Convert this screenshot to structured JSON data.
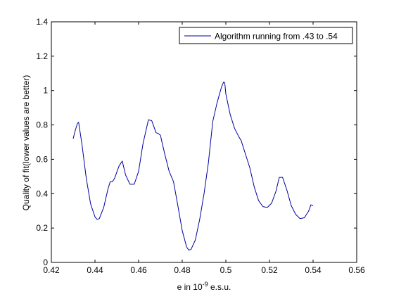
{
  "chart_data": {
    "type": "line",
    "title": "",
    "xlabel": "e in 10",
    "xlabel_sup": "-9",
    "xlabel_suffix": " e.s.u.",
    "ylabel": "Quality of fit(lower values are better)",
    "xlim": [
      0.42,
      0.56
    ],
    "ylim": [
      0,
      1.4
    ],
    "x_ticks": [
      "0.42",
      "0.44",
      "0.46",
      "0.48",
      "0.5",
      "0.52",
      "0.54",
      "0.56"
    ],
    "y_ticks": [
      "0",
      "0.2",
      "0.4",
      "0.6",
      "0.8",
      "1",
      "1.2",
      "1.4"
    ],
    "grid": false,
    "legend_position": "top-right",
    "series": [
      {
        "name": "Algorithm running from .43 to .54",
        "color": "#0000a0",
        "x": [
          0.43,
          0.431,
          0.432,
          0.4325,
          0.434,
          0.436,
          0.438,
          0.44,
          0.441,
          0.442,
          0.444,
          0.446,
          0.447,
          0.448,
          0.449,
          0.451,
          0.4525,
          0.454,
          0.456,
          0.458,
          0.46,
          0.462,
          0.4645,
          0.466,
          0.468,
          0.469,
          0.47,
          0.472,
          0.474,
          0.476,
          0.478,
          0.48,
          0.482,
          0.483,
          0.484,
          0.486,
          0.488,
          0.49,
          0.492,
          0.494,
          0.496,
          0.498,
          0.499,
          0.4995,
          0.5,
          0.502,
          0.504,
          0.506,
          0.507,
          0.509,
          0.511,
          0.513,
          0.515,
          0.517,
          0.519,
          0.521,
          0.523,
          0.5245,
          0.526,
          0.528,
          0.53,
          0.532,
          0.534,
          0.536,
          0.538,
          0.539,
          0.54
        ],
        "y": [
          0.72,
          0.77,
          0.81,
          0.815,
          0.69,
          0.49,
          0.34,
          0.265,
          0.25,
          0.255,
          0.32,
          0.43,
          0.47,
          0.47,
          0.49,
          0.56,
          0.59,
          0.51,
          0.455,
          0.455,
          0.53,
          0.69,
          0.83,
          0.825,
          0.755,
          0.75,
          0.74,
          0.63,
          0.53,
          0.47,
          0.33,
          0.185,
          0.09,
          0.072,
          0.075,
          0.13,
          0.25,
          0.4,
          0.58,
          0.82,
          0.93,
          1.02,
          1.05,
          1.045,
          0.98,
          0.86,
          0.78,
          0.73,
          0.71,
          0.63,
          0.55,
          0.44,
          0.36,
          0.325,
          0.32,
          0.345,
          0.415,
          0.495,
          0.495,
          0.42,
          0.33,
          0.28,
          0.255,
          0.26,
          0.3,
          0.335,
          0.33
        ]
      }
    ]
  }
}
